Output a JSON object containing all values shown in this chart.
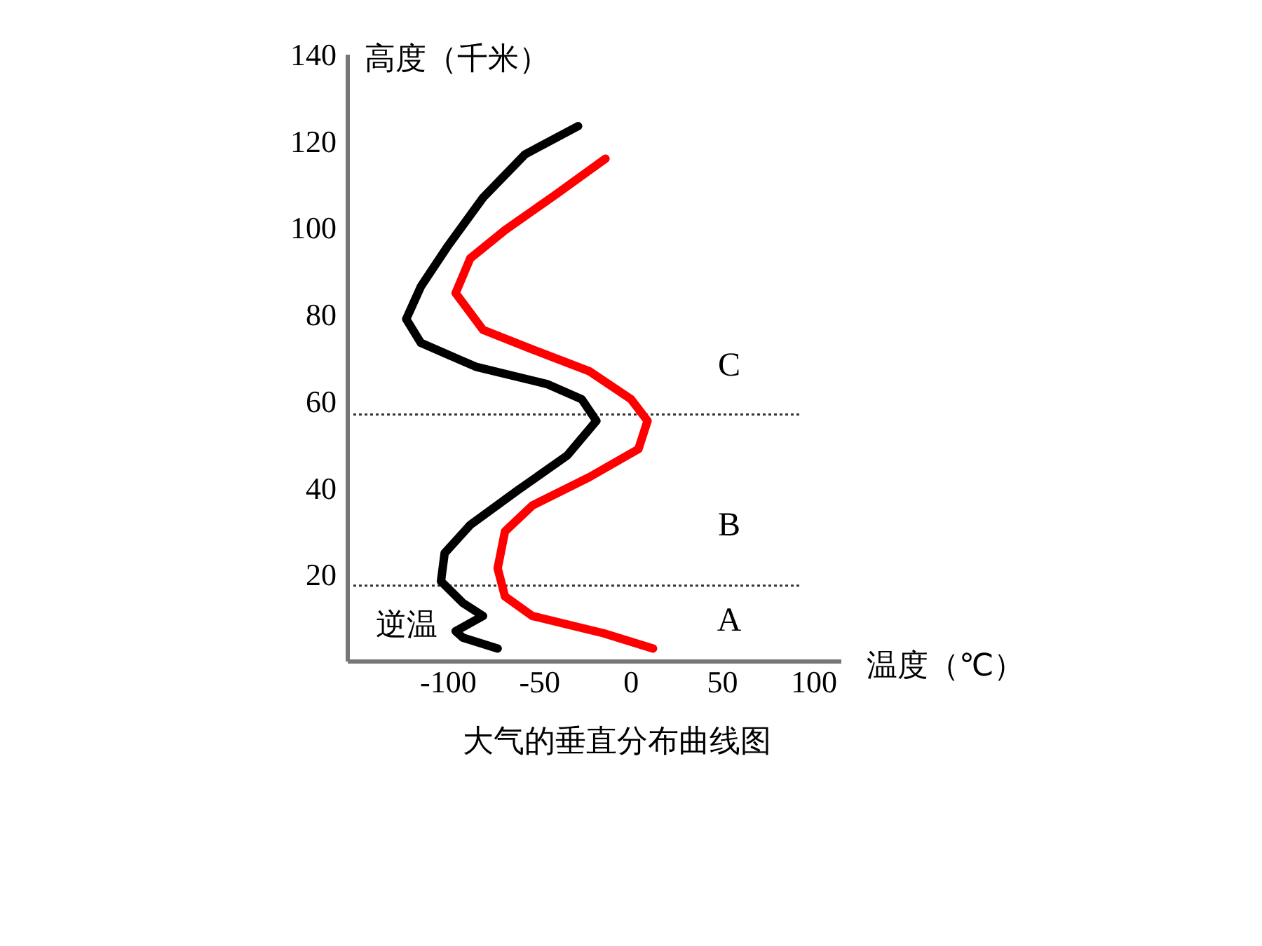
{
  "chart_data": {
    "type": "line",
    "title": "大气的垂直分布曲线图",
    "xlabel": "温度（℃）",
    "ylabel": "高度（千米）",
    "xlim": [
      -155,
      115
    ],
    "ylim": [
      0,
      140
    ],
    "xticks": [
      -100,
      -50,
      0,
      50,
      100
    ],
    "yticks": [
      20,
      40,
      60,
      80,
      100,
      120,
      140
    ],
    "grid": false,
    "marker": "none",
    "line_style": "solid",
    "series": [
      {
        "color": "#000000",
        "x": [
          -73,
          -92,
          -96,
          -81,
          -92,
          -104,
          -102,
          -88,
          -62,
          -35,
          -19,
          -27,
          -46,
          -85,
          -115,
          -123,
          -115,
          -100,
          -81,
          -58,
          -29
        ],
        "values": [
          3,
          5.5,
          7,
          10.5,
          13.5,
          18.5,
          25,
          31.5,
          39.5,
          47.5,
          55.5,
          60.5,
          64,
          68,
          73.5,
          79,
          86.5,
          96,
          107,
          117,
          123.5
        ]
      },
      {
        "color": "#ff0000",
        "x": [
          12,
          -15,
          -54,
          -69,
          -73,
          -69,
          -54,
          -23,
          4,
          9,
          0,
          -23,
          -54,
          -81,
          -96,
          -88,
          -69,
          -42,
          -14
        ],
        "values": [
          3,
          6.5,
          10.5,
          15,
          21.5,
          30,
          36,
          42.5,
          49,
          55.5,
          60.5,
          67,
          72,
          76.5,
          85,
          93,
          99.5,
          107.5,
          116
        ]
      }
    ],
    "ref_lines": [
      {
        "axis": "y",
        "value": 57,
        "color": "#333333",
        "line_style": "dotted"
      },
      {
        "axis": "y",
        "value": 17.5,
        "color": "#333333",
        "line_style": "dotted"
      }
    ],
    "annotations": [
      "A",
      "B",
      "C",
      "逆温"
    ]
  }
}
